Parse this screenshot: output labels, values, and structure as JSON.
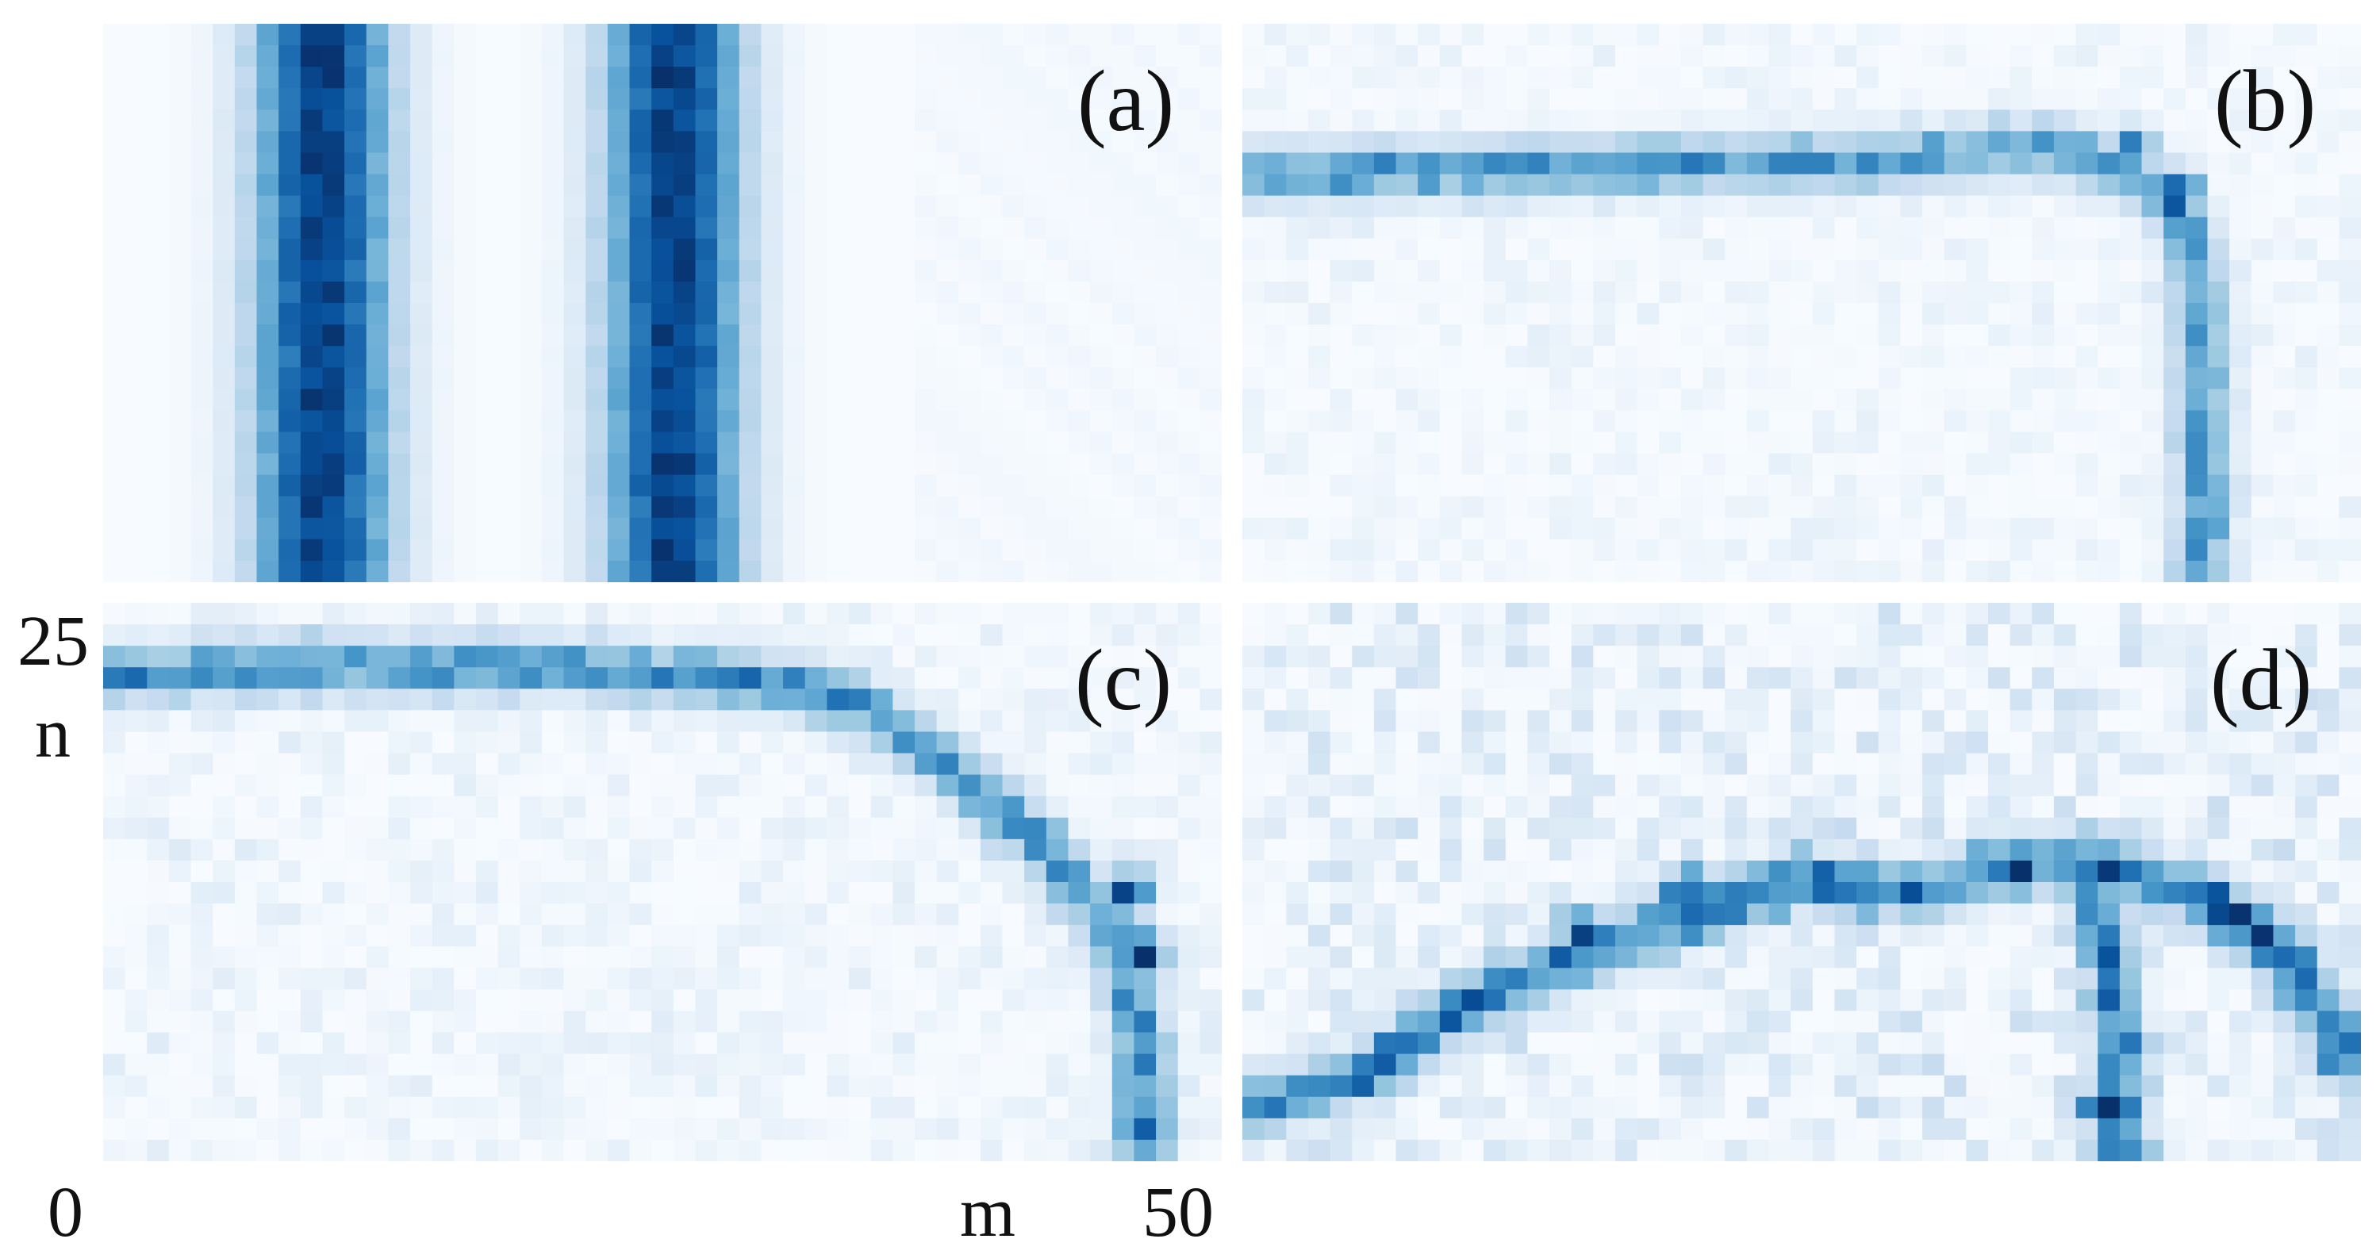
{
  "chart_data": {
    "type": "heatmap",
    "colormap": [
      "#f7fbff",
      "#deebf7",
      "#c6dbef",
      "#9ecae1",
      "#6baed6",
      "#4292c6",
      "#2171b5",
      "#08519c",
      "#08306b"
    ],
    "grid": {
      "cols": 51,
      "rows": 26
    },
    "axes": {
      "xlabel": "m",
      "ylabel": "n",
      "xticks": [
        "0",
        "50"
      ],
      "yticks": [
        "0",
        "25"
      ],
      "xlim": [
        0,
        50
      ],
      "ylim": [
        0,
        25
      ]
    },
    "panels": [
      {
        "label": "(a)",
        "pattern": "vertical-bands",
        "bands": [
          {
            "center_m": 9.5,
            "width": 4.0,
            "peak": 0.95
          },
          {
            "center_m": 25.5,
            "width": 4.0,
            "peak": 0.95
          }
        ]
      },
      {
        "label": "(b)",
        "pattern": "ridge",
        "path": [
          [
            0,
            18.5
          ],
          [
            15,
            18.8
          ],
          [
            30,
            19.2
          ],
          [
            36,
            19.8
          ],
          [
            39,
            19.0
          ],
          [
            42,
            17.2
          ],
          [
            43,
            15.0
          ],
          [
            43.2,
            11.0
          ],
          [
            43.3,
            7.0
          ],
          [
            43.3,
            0
          ]
        ],
        "peak": 0.55,
        "hotspots": [
          {
            "m": 40,
            "n": 19.5,
            "v": 0.85
          },
          {
            "m": 42,
            "n": 17.5,
            "v": 1.0
          }
        ],
        "noise": 0.08
      },
      {
        "label": "(c)",
        "pattern": "ridge",
        "path": [
          [
            0,
            22.2
          ],
          [
            10,
            22.6
          ],
          [
            20,
            22.5
          ],
          [
            30,
            21.8
          ],
          [
            34,
            20.8
          ],
          [
            38,
            18.0
          ],
          [
            42,
            14.5
          ],
          [
            45,
            11.0
          ],
          [
            46.5,
            7.0
          ],
          [
            47,
            3.0
          ],
          [
            47,
            0
          ]
        ],
        "peak": 0.6,
        "hotspots": [
          {
            "m": 46,
            "n": 12,
            "v": 1.0
          },
          {
            "m": 47,
            "n": 9,
            "v": 0.9
          },
          {
            "m": 47,
            "n": 1,
            "v": 0.8
          }
        ],
        "noise": 0.1
      },
      {
        "label": "(d)",
        "pattern": "ridge",
        "path": [
          [
            0,
            2
          ],
          [
            5,
            3.5
          ],
          [
            10,
            7.0
          ],
          [
            15,
            9.0
          ],
          [
            20,
            11.0
          ],
          [
            25,
            12.5
          ],
          [
            30,
            12.0
          ],
          [
            35,
            13.5
          ],
          [
            40,
            12.8
          ],
          [
            44,
            11.5
          ],
          [
            47,
            9.0
          ],
          [
            49,
            6.0
          ],
          [
            50,
            4.0
          ]
        ],
        "path2": [
          [
            38,
            13.0
          ],
          [
            39,
            9.0
          ],
          [
            39.5,
            5.0
          ],
          [
            39.5,
            0
          ]
        ],
        "peak": 0.65,
        "hotspots": [
          {
            "m": 15,
            "n": 10,
            "v": 0.95
          },
          {
            "m": 20,
            "n": 12,
            "v": 0.9
          },
          {
            "m": 39,
            "n": 2,
            "v": 1.0
          },
          {
            "m": 35,
            "n": 13,
            "v": 0.85
          }
        ],
        "noise": 0.2
      }
    ]
  }
}
